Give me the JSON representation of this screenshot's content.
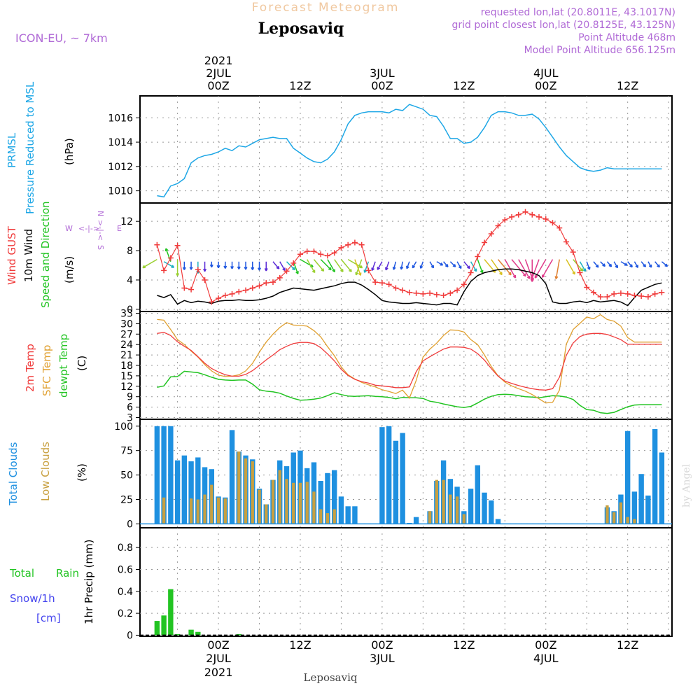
{
  "header": {
    "super_title": "Forecast Meteogram",
    "location": "Leposaviq",
    "model": "ICON-EU, ~ 7km",
    "requested": "requested lon,lat (20.8011E, 43.1017N)",
    "grid_point": "grid point closest lon,lat (20.8125E, 43.125N)",
    "point_alt": "Point Altitude 468m",
    "model_alt": "Model Point Altitude 656.125m",
    "footer_location": "Leposaviq",
    "credit": "by Angel"
  },
  "time_axis": {
    "year": "2021",
    "top_dates": [
      "2JUL",
      "3JUL",
      "4JUL"
    ],
    "bottom_dates": [
      "2JUL",
      "3JUL",
      "4JUL"
    ],
    "tick_labels": [
      "00Z",
      "12Z",
      "00Z",
      "12Z",
      "00Z",
      "12Z"
    ],
    "tick_hours": [
      0,
      12,
      24,
      36,
      48,
      60
    ]
  },
  "panels": {
    "pressure": {
      "labels": [
        "PRMSL",
        "Pressure Reduced to MSL"
      ],
      "unit": "(hPa)",
      "yticks": [
        "1010",
        "1012",
        "1014",
        "1016"
      ]
    },
    "wind": {
      "labels": [
        "Wind GUST",
        "10m Wind",
        "Speed and Direction"
      ],
      "unit": "(m/s)",
      "compass_n": "N",
      "compass_w": "W",
      "compass_e": "E",
      "compass_s": "S",
      "yticks": [
        "0",
        "4",
        "8",
        "12"
      ]
    },
    "temp": {
      "labels": [
        "2m Temp",
        "SFC Temp",
        "dewpt Temp"
      ],
      "unit": "(C)",
      "yticks": [
        "3",
        "6",
        "9",
        "12",
        "15",
        "18",
        "21",
        "24",
        "27",
        "30",
        "33"
      ]
    },
    "clouds": {
      "labels": [
        "Total Clouds",
        "Low Clouds"
      ],
      "unit": "(%)",
      "yticks": [
        "0",
        "25",
        "50",
        "75",
        "100"
      ]
    },
    "precip": {
      "labels": [
        "Total",
        "Rain",
        "Snow/1h",
        "[cm]"
      ],
      "unit": "1hr Precip (mm)",
      "yticks": [
        "0",
        "0.2",
        "0.4",
        "0.6",
        "0.8"
      ]
    }
  },
  "colors": {
    "pressure": "#1ea7e6",
    "gust": "#f03c3c",
    "wind": "#000000",
    "t2m": "#f03c3c",
    "sfc": "#e0a030",
    "dewpt": "#22c422",
    "total_clouds": "#1e90e0",
    "low_clouds": "#c8a040",
    "rain": "#22c422",
    "snow": "#4444ee",
    "purple": "#b06ad6"
  },
  "chart_data": {
    "type": "line",
    "x_unit": "hours from 2021-07-02 00Z",
    "x": [
      -9,
      -8,
      -7,
      -6,
      -5,
      -4,
      -3,
      -2,
      -1,
      0,
      1,
      2,
      3,
      4,
      5,
      6,
      7,
      8,
      9,
      10,
      11,
      12,
      13,
      14,
      15,
      16,
      17,
      18,
      19,
      20,
      21,
      22,
      23,
      24,
      25,
      26,
      27,
      28,
      29,
      30,
      31,
      32,
      33,
      34,
      35,
      36,
      37,
      38,
      39,
      40,
      41,
      42,
      43,
      44,
      45,
      46,
      47,
      48,
      49,
      50,
      51,
      52,
      53,
      54,
      55,
      56,
      57,
      58,
      59,
      60,
      61,
      62,
      63,
      64,
      65
    ],
    "xlim": [
      -11.5,
      66.5
    ],
    "series": [
      {
        "name": "PRMSL",
        "unit": "hPa",
        "ylim": [
          1009,
          1017.8
        ],
        "values": [
          1009.6,
          1009.5,
          1010.4,
          1010.6,
          1011.0,
          1012.3,
          1012.7,
          1012.9,
          1013.0,
          1013.2,
          1013.5,
          1013.3,
          1013.7,
          1013.6,
          1013.9,
          1014.2,
          1014.3,
          1014.4,
          1014.3,
          1014.3,
          1013.5,
          1013.1,
          1012.7,
          1012.4,
          1012.3,
          1012.6,
          1013.2,
          1014.2,
          1015.5,
          1016.2,
          1016.4,
          1016.5,
          1016.5,
          1016.5,
          1016.4,
          1016.7,
          1016.6,
          1017.1,
          1016.9,
          1016.7,
          1016.2,
          1016.1,
          1015.3,
          1014.3,
          1014.3,
          1013.9,
          1014.0,
          1014.4,
          1015.2,
          1016.2,
          1016.5,
          1016.5,
          1016.4,
          1016.2,
          1016.2,
          1016.3,
          1015.9,
          1015.2,
          1014.4,
          1013.6,
          1012.9,
          1012.4,
          1011.9,
          1011.7,
          1011.6,
          1011.7,
          1011.9,
          1011.8,
          1011.8,
          1011.8,
          1011.8,
          1011.8,
          1011.8,
          1011.8,
          1011.8
        ]
      },
      {
        "name": "Wind GUST",
        "unit": "m/s",
        "ylim": [
          -0.3,
          14.5
        ],
        "values": [
          8.8,
          5.3,
          7.0,
          8.7,
          2.9,
          2.7,
          5.4,
          4.0,
          1.0,
          1.5,
          1.9,
          2.1,
          2.4,
          2.6,
          2.9,
          3.2,
          3.6,
          3.7,
          4.3,
          5.2,
          6.3,
          7.5,
          7.9,
          7.9,
          7.5,
          7.3,
          7.7,
          8.4,
          8.8,
          9.1,
          8.8,
          5.3,
          3.7,
          3.6,
          3.4,
          2.9,
          2.6,
          2.3,
          2.2,
          2.1,
          2.2,
          2.0,
          1.9,
          2.2,
          2.6,
          3.4,
          5.0,
          7.2,
          9.1,
          10.3,
          11.4,
          12.2,
          12.6,
          12.9,
          13.3,
          12.9,
          12.6,
          12.3,
          11.8,
          11.1,
          9.2,
          7.8,
          5.0,
          3.0,
          2.3,
          1.7,
          1.7,
          2.1,
          2.2,
          2.1,
          1.9,
          1.8,
          1.7,
          2.1,
          2.3
        ]
      },
      {
        "name": "10m Wind",
        "unit": "m/s",
        "ylim": [
          -0.3,
          14.5
        ],
        "values": [
          1.9,
          1.6,
          2.0,
          0.7,
          1.2,
          0.9,
          1.1,
          1.0,
          0.8,
          1.1,
          1.2,
          1.2,
          1.3,
          1.2,
          1.2,
          1.3,
          1.5,
          1.8,
          2.3,
          2.6,
          2.9,
          2.8,
          2.7,
          2.6,
          2.8,
          3.0,
          3.2,
          3.5,
          3.7,
          3.7,
          3.3,
          2.7,
          2.0,
          1.2,
          1.0,
          0.9,
          0.8,
          0.8,
          0.9,
          0.8,
          0.7,
          0.6,
          0.8,
          0.8,
          0.6,
          2.4,
          3.8,
          4.6,
          5.0,
          5.2,
          5.4,
          5.5,
          5.5,
          5.4,
          5.2,
          5.0,
          4.6,
          3.5,
          1.0,
          0.8,
          0.8,
          1.0,
          1.1,
          0.9,
          1.2,
          1.0,
          1.1,
          1.2,
          1.0,
          0.5,
          1.6,
          2.6,
          3.0,
          3.4,
          3.6
        ]
      },
      {
        "name": "2m Temp",
        "unit": "C",
        "ylim": [
          2.5,
          33.5
        ],
        "values": [
          27.2,
          27.5,
          26.6,
          24.8,
          23.5,
          22.3,
          20.5,
          18.6,
          17.1,
          16.1,
          15.3,
          14.9,
          14.9,
          15.4,
          16.5,
          18.0,
          19.6,
          21.0,
          22.5,
          23.5,
          24.3,
          24.6,
          24.6,
          24.3,
          23.1,
          21.3,
          19.3,
          16.9,
          15.1,
          14.0,
          13.3,
          12.9,
          12.3,
          12.1,
          11.9,
          11.6,
          11.6,
          11.8,
          16.2,
          19.3,
          20.5,
          21.6,
          22.7,
          23.3,
          23.3,
          23.2,
          22.7,
          21.4,
          19.5,
          17.1,
          14.9,
          13.5,
          12.8,
          12.2,
          11.7,
          11.3,
          11.0,
          10.9,
          11.3,
          14.6,
          20.9,
          24.4,
          26.3,
          27.0,
          27.2,
          27.2,
          26.9,
          26.2,
          25.4,
          24.1,
          24.1,
          24.1,
          24.1,
          24.1,
          24.1
        ]
      },
      {
        "name": "SFC Temp",
        "unit": "C",
        "ylim": [
          2.5,
          33.5
        ],
        "values": [
          31.2,
          31.0,
          28.3,
          25.4,
          24.0,
          22.1,
          20.4,
          18.2,
          16.4,
          15.2,
          14.8,
          14.9,
          15.3,
          16.4,
          18.6,
          21.8,
          24.7,
          27.0,
          28.9,
          30.3,
          29.6,
          29.5,
          29.3,
          28.0,
          26.2,
          23.4,
          20.8,
          17.6,
          15.3,
          14.1,
          13.1,
          12.4,
          11.8,
          11.0,
          10.5,
          9.9,
          10.9,
          8.6,
          13.7,
          20.4,
          22.7,
          24.4,
          26.6,
          28.2,
          28.1,
          27.6,
          25.4,
          24.0,
          21.0,
          17.7,
          15.0,
          13.2,
          12.1,
          11.3,
          10.6,
          9.6,
          8.4,
          7.2,
          7.4,
          10.9,
          24.1,
          28.3,
          30.1,
          31.9,
          31.4,
          32.6,
          31.2,
          30.7,
          29.3,
          26.0,
          24.7,
          24.7,
          24.7,
          24.7,
          24.7
        ]
      },
      {
        "name": "dewpt Temp",
        "unit": "C",
        "ylim": [
          2.5,
          33.5
        ],
        "values": [
          11.7,
          12.1,
          14.7,
          14.8,
          16.3,
          16.1,
          15.9,
          15.3,
          14.6,
          14.0,
          13.8,
          13.7,
          13.8,
          13.8,
          12.6,
          11.0,
          10.6,
          10.4,
          10.0,
          9.2,
          8.5,
          8.0,
          8.1,
          8.3,
          8.6,
          9.3,
          10.1,
          9.6,
          9.2,
          9.1,
          9.2,
          9.3,
          9.1,
          9.0,
          8.8,
          8.4,
          8.8,
          8.7,
          8.7,
          8.5,
          7.7,
          7.4,
          6.9,
          6.5,
          6.1,
          5.9,
          6.2,
          7.2,
          8.3,
          9.1,
          9.6,
          9.7,
          9.6,
          9.3,
          9.0,
          8.9,
          8.7,
          9.0,
          9.3,
          9.2,
          8.9,
          8.2,
          6.5,
          5.3,
          5.1,
          4.4,
          4.2,
          4.5,
          5.3,
          6.1,
          6.6,
          6.7,
          6.7,
          6.7,
          6.7
        ]
      },
      {
        "name": "Total Clouds",
        "unit": "%",
        "ylim": [
          -4,
          107
        ],
        "values": [
          100,
          100,
          100,
          65,
          70,
          64,
          68,
          58,
          56,
          28,
          27,
          96,
          74,
          70,
          66,
          36,
          20,
          45,
          65,
          59,
          73,
          75,
          57,
          63,
          44,
          52,
          55,
          28,
          18,
          18,
          0,
          0,
          0,
          99,
          100,
          85,
          93,
          1,
          7,
          0,
          13,
          44,
          65,
          46,
          38,
          13,
          36,
          60,
          32,
          24,
          5,
          0,
          0,
          0,
          0,
          0,
          0,
          0,
          0,
          0,
          0,
          0,
          0,
          0,
          0,
          0,
          17,
          13,
          30,
          95,
          33,
          51,
          29,
          97,
          73
        ]
      },
      {
        "name": "Low Clouds",
        "unit": "%",
        "ylim": [
          -4,
          107
        ],
        "values": [
          0,
          27,
          0,
          0,
          0,
          26,
          25,
          30,
          40,
          27,
          26,
          0,
          74,
          67,
          64,
          35,
          20,
          45,
          55,
          46,
          42,
          42,
          43,
          33,
          15,
          11,
          15,
          0,
          0,
          0,
          0,
          0,
          0,
          0,
          0,
          0,
          0,
          0,
          0,
          0,
          13,
          45,
          45,
          30,
          28,
          10,
          0,
          0,
          0,
          0,
          0,
          0,
          0,
          0,
          0,
          0,
          0,
          0,
          0,
          0,
          0,
          0,
          0,
          0,
          0,
          0,
          19,
          12,
          22,
          7,
          5,
          0,
          0,
          0,
          0
        ]
      },
      {
        "name": "Total Rain",
        "unit": "mm",
        "ylim": [
          -0.01,
          0.98
        ],
        "values": [
          0.13,
          0.18,
          0.42,
          0.01,
          0,
          0.05,
          0.03,
          0,
          0,
          0,
          0,
          0,
          0.01,
          0,
          0,
          0,
          0,
          0,
          0,
          0,
          0,
          0,
          0,
          0,
          0,
          0,
          0,
          0,
          0,
          0,
          0,
          0,
          0,
          0,
          0,
          0,
          0,
          0,
          0,
          0,
          0,
          0,
          0,
          0,
          0,
          0,
          0,
          0,
          0,
          0,
          0,
          0,
          0,
          0,
          0,
          0,
          0,
          0,
          0,
          0,
          0,
          0,
          0,
          0,
          0,
          0,
          0,
          0,
          0,
          0,
          0,
          0,
          0,
          0,
          0
        ]
      }
    ],
    "wind_direction_deg": [
      60,
      300,
      160,
      0,
      0,
      0,
      0,
      0,
      0,
      0,
      0,
      0,
      0,
      0,
      0,
      0,
      0,
      320,
      330,
      315,
      340,
      300,
      330,
      320,
      315,
      330,
      325,
      320,
      300,
      340,
      20,
      20,
      20,
      30,
      20,
      15,
      10,
      20,
      30,
      20,
      330,
      300,
      320,
      315,
      330,
      320,
      330,
      340,
      320,
      325,
      320,
      330,
      320,
      330,
      340,
      0,
      20,
      30,
      30,
      10,
      330,
      320,
      330,
      340,
      320,
      315,
      320,
      330,
      300,
      320,
      330,
      320,
      330,
      320,
      310
    ]
  }
}
